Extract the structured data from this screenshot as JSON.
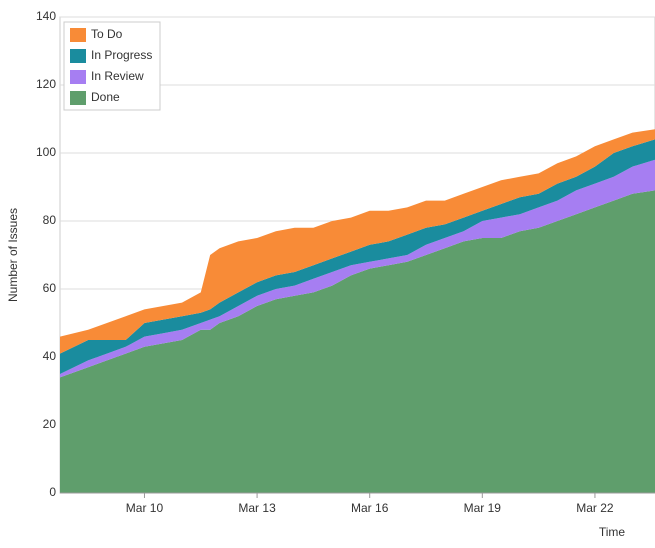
{
  "chart_data": {
    "type": "stacked-area",
    "xlabel": "Time",
    "ylabel": "Number of Issues",
    "x": [
      7.75,
      8.5,
      9,
      9.5,
      10,
      10.5,
      11,
      11.5,
      11.75,
      12,
      12.5,
      13,
      13.5,
      14,
      14.5,
      15,
      15.5,
      16,
      16.5,
      17,
      17.5,
      18,
      18.5,
      19,
      19.5,
      20,
      20.5,
      21,
      21.5,
      22,
      22.5,
      23,
      23.6
    ],
    "series": [
      {
        "name": "Done",
        "color": "#5f9e6c",
        "values": [
          34,
          37,
          39,
          41,
          43,
          44,
          45,
          48,
          48,
          50,
          52,
          55,
          57,
          58,
          59,
          61,
          64,
          66,
          67,
          68,
          70,
          72,
          74,
          75,
          75,
          77,
          78,
          80,
          82,
          84,
          86,
          88,
          89
        ]
      },
      {
        "name": "In Review",
        "color": "#a67ef2",
        "values": [
          1,
          2,
          2,
          2,
          3,
          3,
          3,
          2,
          3,
          2,
          3,
          3,
          3,
          3,
          4,
          4,
          3,
          2,
          2,
          2,
          3,
          3,
          3,
          5,
          6,
          5,
          6,
          6,
          7,
          7,
          7,
          8,
          9
        ]
      },
      {
        "name": "In Progress",
        "color": "#1a8c9e",
        "values": [
          6,
          6,
          4,
          2,
          4,
          4,
          4,
          3,
          3,
          4,
          4,
          4,
          4,
          4,
          4,
          4,
          4,
          5,
          5,
          6,
          5,
          4,
          4,
          3,
          4,
          5,
          4,
          5,
          4,
          5,
          7,
          6,
          6
        ]
      },
      {
        "name": "To Do",
        "color": "#f88b37",
        "values": [
          5,
          3,
          5,
          7,
          4,
          4,
          4,
          6,
          16,
          16,
          15,
          13,
          13,
          13,
          11,
          11,
          10,
          10,
          9,
          8,
          8,
          7,
          7,
          7,
          7,
          6,
          6,
          6,
          6,
          6,
          4,
          4,
          3
        ]
      }
    ],
    "xlim": [
      7.75,
      23.6
    ],
    "xticks": [
      {
        "value": 10,
        "label": "Mar 10"
      },
      {
        "value": 13,
        "label": "Mar 13"
      },
      {
        "value": 16,
        "label": "Mar 16"
      },
      {
        "value": 19,
        "label": "Mar 19"
      },
      {
        "value": 22,
        "label": "Mar 22"
      }
    ],
    "ylim": [
      0,
      140
    ],
    "yticks": [
      0,
      20,
      40,
      60,
      80,
      100,
      120,
      140
    ],
    "grid": true,
    "legend": "top-left"
  }
}
